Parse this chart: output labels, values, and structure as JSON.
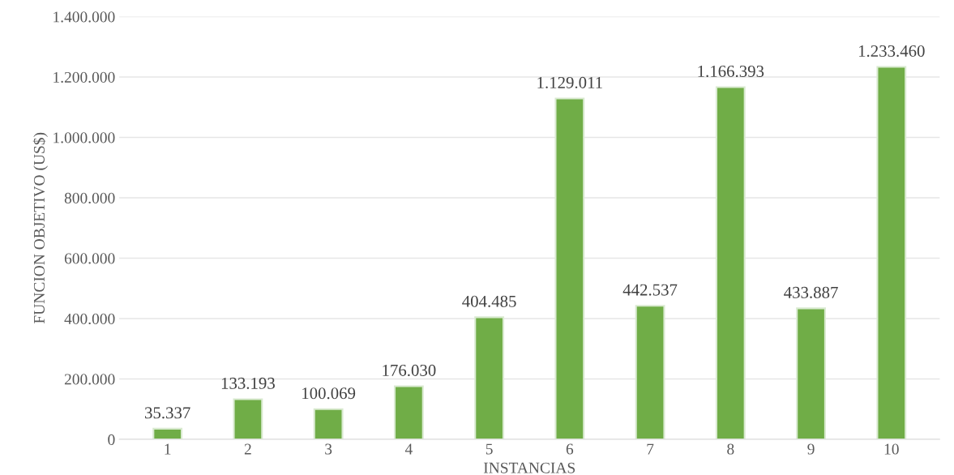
{
  "chart_data": {
    "type": "bar",
    "xlabel": "INSTANCIAS",
    "ylabel": "FUNCION OBJETIVO (US$)",
    "categories": [
      "1",
      "2",
      "3",
      "4",
      "5",
      "6",
      "7",
      "8",
      "9",
      "10"
    ],
    "values": [
      35337,
      133193,
      100069,
      176030,
      404485,
      1129011,
      442537,
      1166393,
      433887,
      1233460
    ],
    "value_labels": [
      "35.337",
      "133.193",
      "100.069",
      "176.030",
      "404.485",
      "1.129.011",
      "442.537",
      "1.166.393",
      "433.887",
      "1.233.460"
    ],
    "color": "#70ad47",
    "ylim": [
      0,
      1400000
    ],
    "yticks": [
      {
        "value": 0,
        "label": "0"
      },
      {
        "value": 200000,
        "label": "200.000"
      },
      {
        "value": 400000,
        "label": "400.000"
      },
      {
        "value": 600000,
        "label": "600.000"
      },
      {
        "value": 800000,
        "label": "800.000"
      },
      {
        "value": 1000000,
        "label": "1.000.000"
      },
      {
        "value": 1200000,
        "label": "1.200.000"
      },
      {
        "value": 1400000,
        "label": "1.400.000"
      }
    ],
    "grid": "y"
  }
}
